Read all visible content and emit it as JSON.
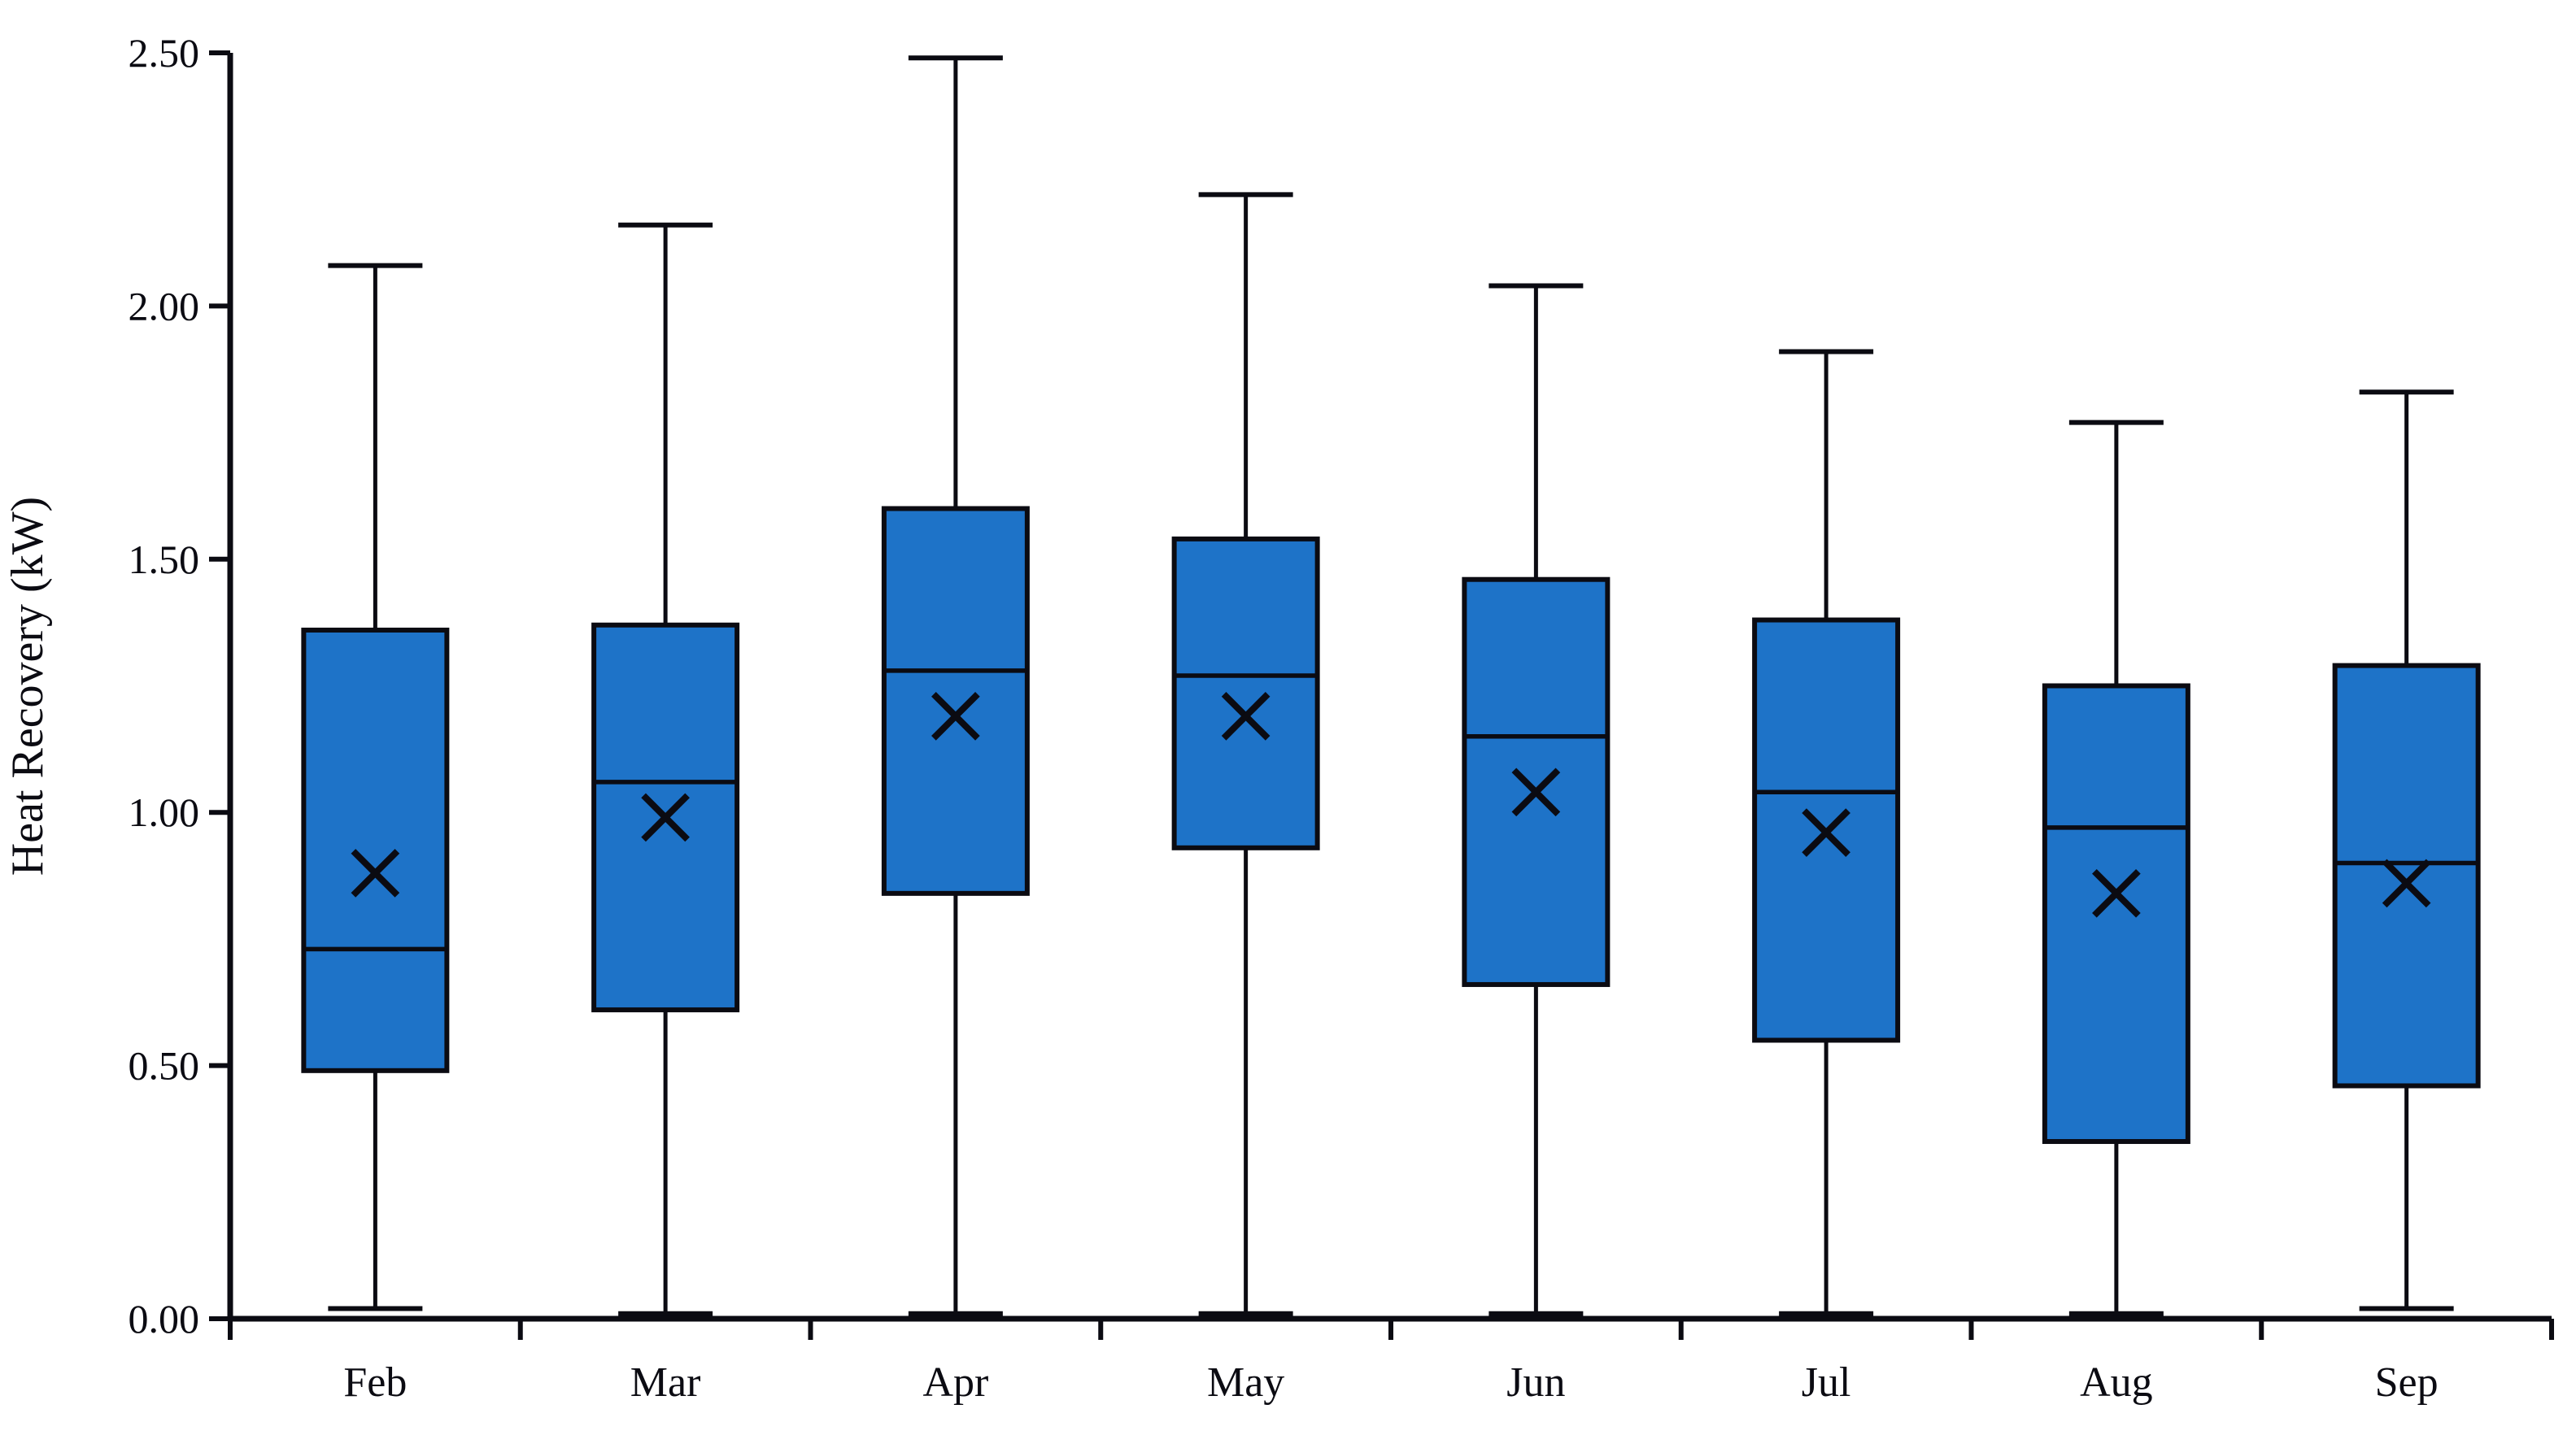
{
  "figure": {
    "background": "#ffffff"
  },
  "chart_data": {
    "type": "box",
    "title": "",
    "xlabel": "",
    "ylabel": "Heat Recovery (kW)",
    "ylim": [
      0.0,
      2.5
    ],
    "ytick_step": 0.5,
    "ytick_labels": [
      "0.00",
      "0.50",
      "1.00",
      "1.50",
      "2.00",
      "2.50"
    ],
    "grid": false,
    "legend": "none",
    "categories": [
      "Feb",
      "Mar",
      "Apr",
      "May",
      "Jun",
      "Jul",
      "Aug",
      "Sep"
    ],
    "series": [
      {
        "name": "Feb",
        "min": 0.02,
        "q1": 0.49,
        "median": 0.73,
        "mean": 0.88,
        "q3": 1.36,
        "max": 2.08
      },
      {
        "name": "Mar",
        "min": 0.01,
        "q1": 0.61,
        "median": 1.06,
        "mean": 0.99,
        "q3": 1.37,
        "max": 2.16
      },
      {
        "name": "Apr",
        "min": 0.01,
        "q1": 0.84,
        "median": 1.28,
        "mean": 1.19,
        "q3": 1.6,
        "max": 2.49
      },
      {
        "name": "May",
        "min": 0.01,
        "q1": 0.93,
        "median": 1.27,
        "mean": 1.19,
        "q3": 1.54,
        "max": 2.22
      },
      {
        "name": "Jun",
        "min": 0.01,
        "q1": 0.66,
        "median": 1.15,
        "mean": 1.04,
        "q3": 1.46,
        "max": 2.04
      },
      {
        "name": "Jul",
        "min": 0.01,
        "q1": 0.55,
        "median": 1.04,
        "mean": 0.96,
        "q3": 1.38,
        "max": 1.91
      },
      {
        "name": "Aug",
        "min": 0.01,
        "q1": 0.35,
        "median": 0.97,
        "mean": 0.84,
        "q3": 1.25,
        "max": 1.77
      },
      {
        "name": "Sep",
        "min": 0.02,
        "q1": 0.46,
        "median": 0.9,
        "mean": 0.86,
        "q3": 1.29,
        "max": 1.83
      }
    ],
    "mean_marker": "x",
    "colors": {
      "box_fill": "#1E73C8",
      "line": "#0B0B12",
      "background": "#FFFFFF"
    }
  }
}
